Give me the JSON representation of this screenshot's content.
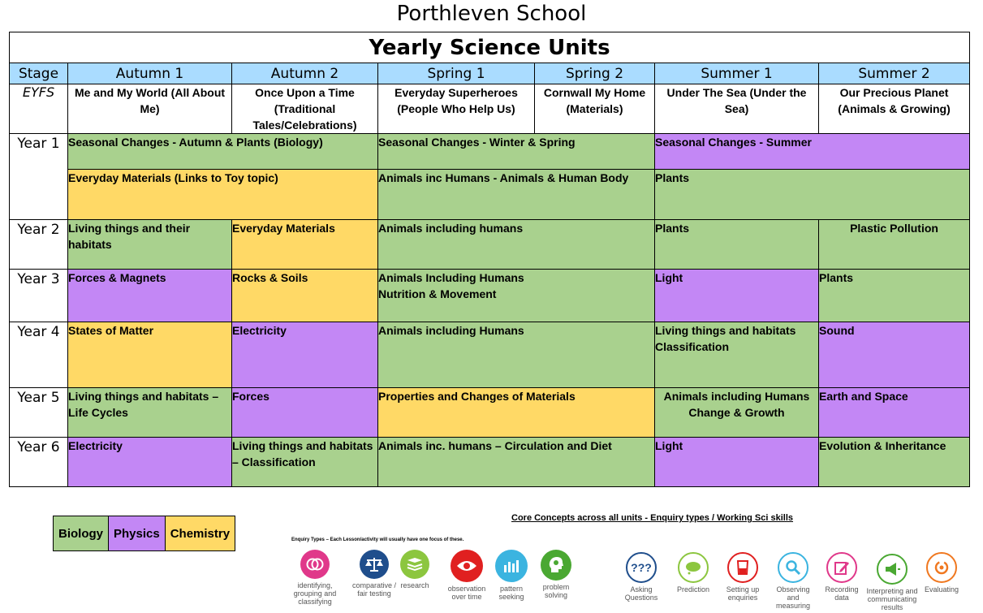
{
  "school_name": "Porthleven School",
  "table_title": "Yearly Science Units",
  "headers": [
    "Stage",
    "Autumn 1",
    "Autumn 2",
    "Spring 1",
    "Spring 2",
    "Summer 1",
    "Summer 2"
  ],
  "eyfs": {
    "stage": "EYFS",
    "autumn1": "Me and My World (All About Me)",
    "autumn2": "Once Upon a Time (Traditional Tales/Celebrations)",
    "spring1": "Everyday Superheroes (People Who Help Us)",
    "spring2": "Cornwall My Home (Materials)",
    "summer1": "Under The Sea (Under the Sea)",
    "summer2": "Our Precious Planet (Animals & Growing)"
  },
  "year1": {
    "stage": "Year 1",
    "r1_autumn": "Seasonal Changes - Autumn & Plants (Biology)",
    "r1_spring": "Seasonal Changes - Winter & Spring",
    "r1_summer": "Seasonal Changes  - Summer",
    "r2_autumn": "Everyday Materials (Links to Toy topic)",
    "r2_spring": "Animals inc Humans - Animals & Human Body",
    "r2_summer": "Plants"
  },
  "year2": {
    "stage": "Year 2",
    "autumn1": "Living things and their habitats",
    "autumn2": "Everyday Materials",
    "spring": "Animals including humans",
    "summer1": "Plants",
    "summer2": "Plastic Pollution"
  },
  "year3": {
    "stage": "Year 3",
    "autumn1": "Forces & Magnets",
    "autumn2": "Rocks & Soils",
    "spring_line1": "Animals Including Humans",
    "spring_line2": "Nutrition & Movement",
    "summer1": "Light",
    "summer2": "Plants"
  },
  "year4": {
    "stage": "Year 4",
    "autumn1": "States of Matter",
    "autumn2": "Electricity",
    "spring": "Animals including Humans",
    "summer1_line1": "Living things and habitats",
    "summer1_line2": "Classification",
    "summer2": "Sound"
  },
  "year5": {
    "stage": "Year 5",
    "autumn1": "Living things and habitats – Life Cycles",
    "autumn2": "Forces",
    "spring": "Properties and Changes of Materials",
    "summer1_line1": "Animals including Humans",
    "summer1_line2": "Change & Growth",
    "summer2": "Earth and Space"
  },
  "year6": {
    "stage": "Year 6",
    "autumn1": "Electricity",
    "autumn2": "Living things and habitats – Classification",
    "spring": "Animals inc. humans – Circulation and Diet",
    "summer1": "Light",
    "summer2": "Evolution & Inheritance"
  },
  "key": {
    "biology": "Biology",
    "physics": "Physics",
    "chemistry": "Chemistry"
  },
  "colors": {
    "biology": "#a9d18e",
    "physics": "#c387f5",
    "chemistry": "#ffd966",
    "header": "#aadcff"
  },
  "core_concepts_title": "Core Concepts across all units - Enquiry types / Working Sci skills",
  "enquiry_note": "Enquiry Types – Each Lesson/activity will usually have one focus of these.",
  "enquiry_types": [
    {
      "label": "identifying, grouping and classifying",
      "icon": "venn-icon",
      "color": "#e0388a"
    },
    {
      "label": "comparative / fair testing",
      "icon": "scales-icon",
      "color": "#1f4e8c"
    },
    {
      "label": "research",
      "icon": "book-icon",
      "color": "#8cc63f"
    },
    {
      "label": "observation over time",
      "icon": "eye-icon",
      "color": "#e02020"
    },
    {
      "label": "pattern seeking",
      "icon": "bar-chart-icon",
      "color": "#3bb4e0"
    },
    {
      "label": "problem solving",
      "icon": "head-cog-icon",
      "color": "#4aa832"
    }
  ],
  "working_skills": [
    {
      "label": "Asking Questions",
      "icon": "question-icon",
      "color": "#1f4e8c"
    },
    {
      "label": "Prediction",
      "icon": "thought-bubble-icon",
      "color": "#8cc63f"
    },
    {
      "label": "Setting up enquiries",
      "icon": "beaker-icon",
      "color": "#e02020"
    },
    {
      "label": "Observing and measuring",
      "icon": "magnifier-icon",
      "color": "#3bb4e0"
    },
    {
      "label": "Recording data",
      "icon": "pencil-icon",
      "color": "#e0388a"
    },
    {
      "label": "Interpreting and communicating results",
      "icon": "megaphone-icon",
      "color": "#4aa832"
    },
    {
      "label": "Evaluating",
      "icon": "cycle-icon",
      "color": "#f07820"
    }
  ]
}
